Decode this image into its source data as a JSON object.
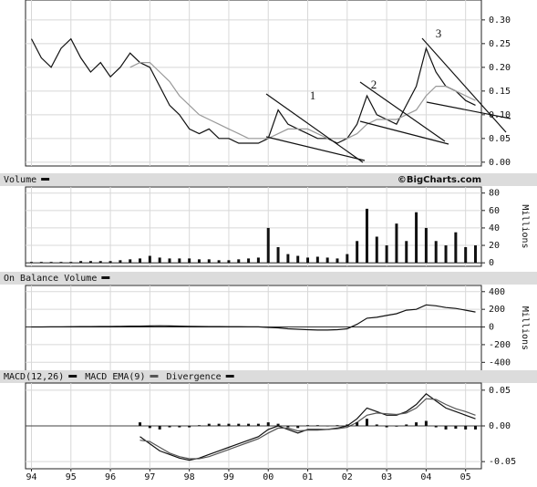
{
  "chart_data": [
    {
      "type": "line",
      "x": [
        1994,
        1994.25,
        1994.5,
        1994.75,
        1995,
        1995.25,
        1995.5,
        1995.75,
        1996,
        1996.25,
        1996.5,
        1996.75,
        1997,
        1997.25,
        1997.5,
        1997.75,
        1998,
        1998.25,
        1998.5,
        1998.75,
        1999,
        1999.25,
        1999.5,
        1999.75,
        2000,
        2000.25,
        2000.5,
        2000.75,
        2001,
        2001.25,
        2001.5,
        2001.75,
        2002,
        2002.25,
        2002.5,
        2002.75,
        2003,
        2003.25,
        2003.5,
        2003.75,
        2004,
        2004.25,
        2004.5,
        2004.75,
        2005,
        2005.25
      ],
      "series": [
        {
          "color": "#111111",
          "values": [
            0.26,
            0.22,
            0.2,
            0.24,
            0.26,
            0.22,
            0.19,
            0.21,
            0.18,
            0.2,
            0.23,
            0.21,
            0.2,
            0.16,
            0.12,
            0.1,
            0.07,
            0.06,
            0.07,
            0.05,
            0.05,
            0.04,
            0.04,
            0.04,
            0.05,
            0.11,
            0.08,
            0.07,
            0.06,
            0.05,
            0.05,
            0.04,
            0.05,
            0.08,
            0.14,
            0.1,
            0.09,
            0.08,
            0.12,
            0.16,
            0.24,
            0.19,
            0.16,
            0.15,
            0.13,
            0.12
          ]
        },
        {
          "color": "#999999",
          "values": [
            null,
            null,
            null,
            null,
            null,
            null,
            null,
            null,
            null,
            null,
            0.2,
            0.21,
            0.21,
            0.19,
            0.17,
            0.14,
            0.12,
            0.1,
            0.09,
            0.08,
            0.07,
            0.06,
            0.05,
            0.05,
            0.05,
            0.06,
            0.07,
            0.07,
            0.07,
            0.06,
            0.05,
            0.05,
            0.05,
            0.06,
            0.08,
            0.09,
            0.09,
            0.09,
            0.1,
            0.11,
            0.14,
            0.16,
            0.16,
            0.15,
            0.14,
            0.13
          ]
        }
      ],
      "annotations": [
        "1",
        "2",
        "3"
      ],
      "xlim": [
        1993.85,
        2005.4
      ],
      "ylim": [
        -0.008,
        0.342
      ],
      "yticks": [
        {
          "value": 0,
          "label": "0.00"
        },
        {
          "value": 0.05,
          "label": "0.05"
        },
        {
          "value": 0.1,
          "label": "0.10"
        },
        {
          "value": 0.15,
          "label": "0.15"
        },
        {
          "value": 0.2,
          "label": "0.20"
        },
        {
          "value": 0.25,
          "label": "0.25"
        },
        {
          "value": 0.3,
          "label": "0.30"
        }
      ],
      "grid": true
    },
    {
      "type": "bar",
      "source": "©BigCharts.com",
      "ylabel": "Millions",
      "x": [
        1994,
        1994.25,
        1994.5,
        1994.75,
        1995,
        1995.25,
        1995.5,
        1995.75,
        1996,
        1996.25,
        1996.5,
        1996.75,
        1997,
        1997.25,
        1997.5,
        1997.75,
        1998,
        1998.25,
        1998.5,
        1998.75,
        1999,
        1999.25,
        1999.5,
        1999.75,
        2000,
        2000.25,
        2000.5,
        2000.75,
        2001,
        2001.25,
        2001.5,
        2001.75,
        2002,
        2002.25,
        2002.5,
        2002.75,
        2003,
        2003.25,
        2003.5,
        2003.75,
        2004,
        2004.25,
        2004.5,
        2004.75,
        2005,
        2005.25
      ],
      "series": [
        {
          "name": "Volume",
          "color": "#111111",
          "values": [
            1,
            1,
            1,
            1,
            1,
            2,
            2,
            2,
            2,
            3,
            4,
            5,
            8,
            6,
            5,
            5,
            5,
            4,
            4,
            3,
            3,
            4,
            5,
            6,
            40,
            18,
            10,
            8,
            6,
            7,
            6,
            5,
            10,
            25,
            62,
            30,
            20,
            45,
            25,
            58,
            40,
            25,
            20,
            35,
            18,
            20
          ]
        }
      ],
      "xlim": [
        1993.85,
        2005.4
      ],
      "ylim": [
        -4,
        87
      ],
      "yticks": [
        0,
        20,
        40,
        60,
        80
      ],
      "grid": true
    },
    {
      "type": "line",
      "ylabel": "Millions",
      "x": [
        1994,
        1994.25,
        1994.5,
        1994.75,
        1995,
        1995.25,
        1995.5,
        1995.75,
        1996,
        1996.25,
        1996.5,
        1996.75,
        1997,
        1997.25,
        1997.5,
        1997.75,
        1998,
        1998.25,
        1998.5,
        1998.75,
        1999,
        1999.25,
        1999.5,
        1999.75,
        2000,
        2000.25,
        2000.5,
        2000.75,
        2001,
        2001.25,
        2001.5,
        2001.75,
        2002,
        2002.25,
        2002.5,
        2002.75,
        2003,
        2003.25,
        2003.5,
        2003.75,
        2004,
        2004.25,
        2004.5,
        2004.75,
        2005,
        2005.25
      ],
      "series": [
        {
          "name": "On Balance Volume",
          "color": "#111111",
          "values": [
            0,
            0,
            2,
            3,
            4,
            5,
            5,
            6,
            6,
            8,
            10,
            10,
            12,
            14,
            12,
            10,
            8,
            6,
            5,
            5,
            4,
            4,
            3,
            2,
            -5,
            -10,
            -20,
            -25,
            -30,
            -35,
            -35,
            -30,
            -20,
            30,
            100,
            110,
            130,
            150,
            190,
            200,
            250,
            240,
            220,
            210,
            190,
            170
          ]
        }
      ],
      "xlim": [
        1993.85,
        2005.4
      ],
      "ylim": [
        -500,
        470
      ],
      "yticks": [
        400,
        200,
        0,
        -200,
        -400
      ],
      "grid": true
    },
    {
      "type": "line",
      "x": [
        1994,
        1994.25,
        1994.5,
        1994.75,
        1995,
        1995.25,
        1995.5,
        1995.75,
        1996,
        1996.25,
        1996.5,
        1996.75,
        1997,
        1997.25,
        1997.5,
        1997.75,
        1998,
        1998.25,
        1998.5,
        1998.75,
        1999,
        1999.25,
        1999.5,
        1999.75,
        2000,
        2000.25,
        2000.5,
        2000.75,
        2001,
        2001.25,
        2001.5,
        2001.75,
        2002,
        2002.25,
        2002.5,
        2002.75,
        2003,
        2003.25,
        2003.5,
        2003.75,
        2004,
        2004.25,
        2004.5,
        2004.75,
        2005,
        2005.25
      ],
      "series": [
        {
          "name": "MACD(12,26)",
          "color": "#111111",
          "values": [
            null,
            null,
            null,
            null,
            null,
            null,
            null,
            null,
            null,
            null,
            null,
            -0.015,
            -0.025,
            -0.035,
            -0.04,
            -0.045,
            -0.048,
            -0.045,
            -0.04,
            -0.035,
            -0.03,
            -0.025,
            -0.02,
            -0.015,
            -0.005,
            0.0,
            -0.005,
            -0.01,
            -0.005,
            -0.005,
            -0.005,
            -0.003,
            0.0,
            0.01,
            0.025,
            0.02,
            0.015,
            0.015,
            0.02,
            0.03,
            0.045,
            0.035,
            0.025,
            0.02,
            0.015,
            0.01
          ]
        },
        {
          "name": "MACD EMA(9)",
          "color": "#555555",
          "values": [
            null,
            null,
            null,
            null,
            null,
            null,
            null,
            null,
            null,
            null,
            null,
            -0.02,
            -0.022,
            -0.03,
            -0.038,
            -0.043,
            -0.046,
            -0.046,
            -0.043,
            -0.038,
            -0.033,
            -0.028,
            -0.023,
            -0.018,
            -0.01,
            -0.003,
            -0.003,
            -0.007,
            -0.006,
            -0.006,
            -0.005,
            -0.004,
            -0.002,
            0.005,
            0.015,
            0.018,
            0.017,
            0.016,
            0.018,
            0.025,
            0.038,
            0.037,
            0.03,
            0.024,
            0.02,
            0.015
          ]
        },
        {
          "name": "Divergence",
          "color": "#111111",
          "type": "bar",
          "values": [
            null,
            null,
            null,
            null,
            null,
            null,
            null,
            null,
            null,
            null,
            null,
            0.005,
            -0.003,
            -0.005,
            -0.002,
            -0.002,
            -0.002,
            0.001,
            0.003,
            0.003,
            0.003,
            0.003,
            0.003,
            0.003,
            0.005,
            0.003,
            -0.002,
            -0.003,
            0.001,
            0.001,
            0,
            0.001,
            0.002,
            0.005,
            0.01,
            0.002,
            -0.002,
            -0.001,
            0.002,
            0.005,
            0.007,
            -0.002,
            -0.005,
            -0.004,
            -0.005,
            -0.005
          ]
        }
      ],
      "xlim": [
        1993.85,
        2005.4
      ],
      "ylim": [
        -0.06,
        0.06
      ],
      "yticks": [
        {
          "value": 0.05,
          "label": "0.05"
        },
        {
          "value": 0,
          "label": "0.00"
        },
        {
          "value": -0.05,
          "label": "-0.05"
        }
      ],
      "xticks": [
        {
          "value": 1994,
          "label": "94"
        },
        {
          "value": 1995,
          "label": "95"
        },
        {
          "value": 1996,
          "label": "96"
        },
        {
          "value": 1997,
          "label": "97"
        },
        {
          "value": 1998,
          "label": "98"
        },
        {
          "value": 1999,
          "label": "99"
        },
        {
          "value": 2000,
          "label": "00"
        },
        {
          "value": 2001,
          "label": "01"
        },
        {
          "value": 2002,
          "label": "02"
        },
        {
          "value": 2003,
          "label": "03"
        },
        {
          "value": 2004,
          "label": "04"
        },
        {
          "value": 2005,
          "label": "05"
        }
      ],
      "grid": true
    }
  ]
}
